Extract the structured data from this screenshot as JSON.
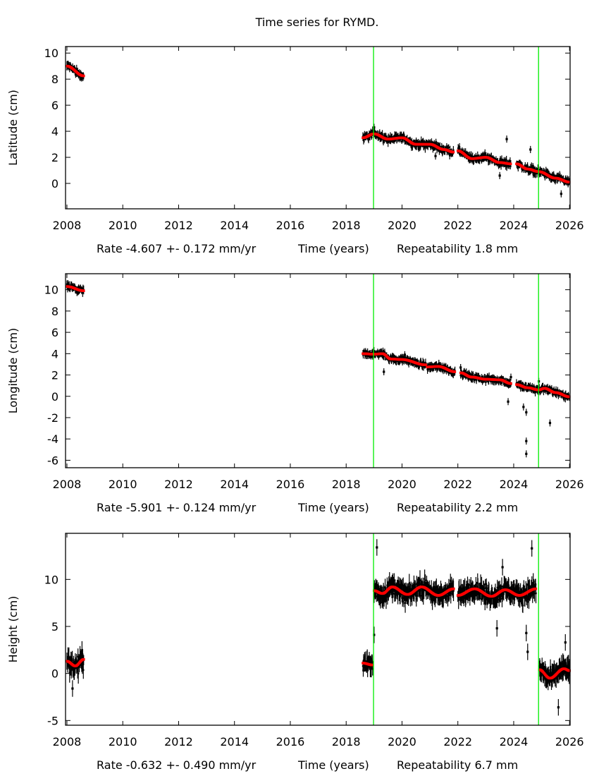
{
  "title": "Time series for RYMD.",
  "colors": {
    "observations": "#000000",
    "model": "#ff0000",
    "event_lines": "#00ee00",
    "axes": "#000000"
  },
  "chart_data": [
    {
      "type": "scatter",
      "ylabel": "Latitude (cm)",
      "xlabel_parts": [
        "Rate -4.607 +- 0.172 mm/yr",
        "Time (years)",
        "Repeatability 1.8 mm"
      ],
      "xlim": [
        2007.95,
        2026.02
      ],
      "ylim": [
        -1.95,
        10.5
      ],
      "xticks": [
        2008,
        2010,
        2012,
        2014,
        2016,
        2018,
        2020,
        2022,
        2024,
        2026
      ],
      "yticks": [
        0,
        2,
        4,
        6,
        8,
        10
      ],
      "grid": false,
      "event_lines": [
        2018.98,
        2024.89
      ],
      "model_segments": [
        [
          [
            2008.0,
            9.0
          ],
          [
            2008.6,
            8.25
          ]
        ],
        [
          [
            2018.6,
            3.5
          ],
          [
            2019.0,
            3.8
          ],
          [
            2019.5,
            3.4
          ],
          [
            2020.0,
            3.5
          ],
          [
            2020.5,
            3.0
          ],
          [
            2021.0,
            3.0
          ],
          [
            2021.5,
            2.6
          ],
          [
            2021.85,
            2.4
          ]
        ],
        [
          [
            2022.0,
            2.5
          ],
          [
            2022.5,
            1.9
          ],
          [
            2023.0,
            2.0
          ],
          [
            2023.5,
            1.6
          ],
          [
            2023.9,
            1.5
          ]
        ],
        [
          [
            2024.1,
            1.5
          ],
          [
            2024.5,
            1.1
          ],
          [
            2024.9,
            0.9
          ],
          [
            2025.5,
            0.4
          ],
          [
            2026.0,
            0.1
          ]
        ]
      ],
      "outliers": [
        [
          2019.0,
          4.3
        ],
        [
          2020.6,
          2.7
        ],
        [
          2021.2,
          2.1
        ],
        [
          2023.75,
          3.4
        ],
        [
          2023.5,
          0.6
        ],
        [
          2024.6,
          2.6
        ],
        [
          2025.7,
          -0.8
        ]
      ]
    },
    {
      "type": "scatter",
      "ylabel": "Longitude (cm)",
      "xlabel_parts": [
        "Rate -5.901 +- 0.124 mm/yr",
        "Time (years)",
        "Repeatability 2.2 mm"
      ],
      "xlim": [
        2007.95,
        2026.02
      ],
      "ylim": [
        -6.7,
        11.5
      ],
      "xticks": [
        2008,
        2010,
        2012,
        2014,
        2016,
        2018,
        2020,
        2022,
        2024,
        2026
      ],
      "yticks": [
        -6,
        -4,
        -2,
        0,
        2,
        4,
        6,
        8,
        10
      ],
      "grid": false,
      "event_lines": [
        2018.98,
        2024.89
      ],
      "model_segments": [
        [
          [
            2008.0,
            10.3
          ],
          [
            2008.6,
            9.9
          ]
        ],
        [
          [
            2018.6,
            4.0
          ],
          [
            2019.0,
            3.95
          ],
          [
            2019.3,
            4.0
          ],
          [
            2019.6,
            3.5
          ],
          [
            2020.0,
            3.45
          ],
          [
            2020.85,
            2.95
          ]
        ],
        [
          [
            2020.9,
            2.75
          ],
          [
            2021.3,
            2.8
          ],
          [
            2021.9,
            2.3
          ]
        ],
        [
          [
            2022.1,
            2.2
          ],
          [
            2022.5,
            1.8
          ],
          [
            2023.0,
            1.6
          ],
          [
            2023.5,
            1.55
          ],
          [
            2023.9,
            1.2
          ]
        ],
        [
          [
            2024.1,
            1.1
          ],
          [
            2024.5,
            0.8
          ],
          [
            2024.9,
            0.6
          ],
          [
            2025.1,
            0.75
          ],
          [
            2025.5,
            0.35
          ],
          [
            2026.0,
            -0.05
          ]
        ]
      ],
      "outliers": [
        [
          2019.35,
          2.3
        ],
        [
          2020.1,
          3.9
        ],
        [
          2022.1,
          2.7
        ],
        [
          2023.8,
          -0.5
        ],
        [
          2023.9,
          1.8
        ],
        [
          2024.35,
          -1.0
        ],
        [
          2024.45,
          -1.5
        ],
        [
          2024.45,
          -4.2
        ],
        [
          2024.45,
          -5.4
        ],
        [
          2025.3,
          -2.5
        ],
        [
          2024.9,
          1.4
        ]
      ]
    },
    {
      "type": "scatter",
      "ylabel": "Height (cm)",
      "xlabel_parts": [
        "Rate -0.632 +- 0.490 mm/yr",
        "Time (years)",
        "Repeatability 6.7 mm"
      ],
      "xlim": [
        2007.95,
        2026.02
      ],
      "ylim": [
        -5.5,
        14.9
      ],
      "xticks": [
        2008,
        2010,
        2012,
        2014,
        2016,
        2018,
        2020,
        2022,
        2024,
        2026
      ],
      "yticks": [
        -5,
        0,
        5,
        10
      ],
      "grid": false,
      "event_lines": [
        2018.98,
        2024.89
      ],
      "model_segments": [
        [
          [
            2008.0,
            1.3
          ],
          [
            2008.3,
            0.8
          ],
          [
            2008.6,
            1.5
          ]
        ],
        [
          [
            2018.6,
            1.1
          ],
          [
            2018.95,
            0.9
          ]
        ],
        [
          [
            2019.0,
            8.8
          ],
          [
            2019.3,
            8.5
          ],
          [
            2019.65,
            9.2
          ],
          [
            2020.2,
            8.4
          ],
          [
            2020.7,
            9.2
          ],
          [
            2021.3,
            8.3
          ],
          [
            2021.85,
            9.0
          ]
        ],
        [
          [
            2022.0,
            8.3
          ],
          [
            2022.6,
            9.0
          ],
          [
            2023.2,
            8.2
          ],
          [
            2023.7,
            8.9
          ],
          [
            2024.2,
            8.3
          ],
          [
            2024.8,
            9.0
          ]
        ],
        [
          [
            2024.92,
            0.4
          ],
          [
            2025.3,
            -0.5
          ],
          [
            2025.8,
            0.5
          ],
          [
            2026.0,
            0.3
          ]
        ]
      ],
      "outliers": [
        [
          2008.2,
          -1.6
        ],
        [
          2019.0,
          4.1
        ],
        [
          2019.1,
          13.4
        ],
        [
          2023.4,
          4.8
        ],
        [
          2023.6,
          11.3
        ],
        [
          2024.45,
          4.3
        ],
        [
          2024.5,
          2.3
        ],
        [
          2024.65,
          13.3
        ],
        [
          2025.6,
          -3.6
        ],
        [
          2025.85,
          3.3
        ]
      ]
    }
  ]
}
